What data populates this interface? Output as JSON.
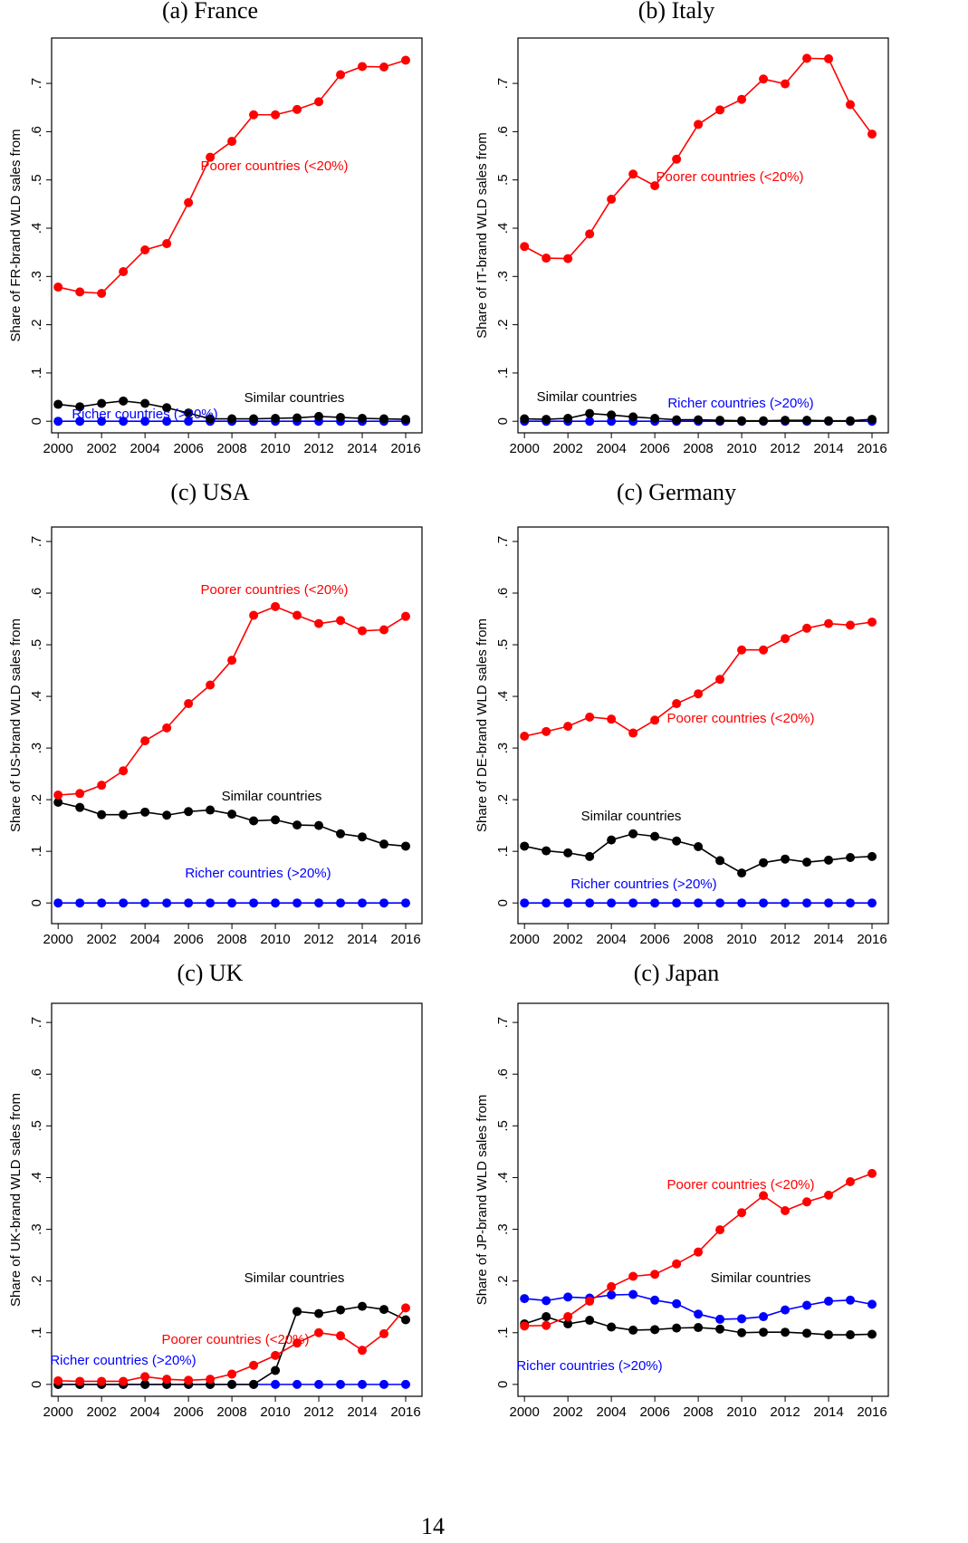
{
  "chart_data": [
    {
      "type": "line",
      "title": "(a) France",
      "ylabel": "Share of FR-brand WLD sales from",
      "x": [
        2000,
        2001,
        2002,
        2003,
        2004,
        2005,
        2006,
        2007,
        2008,
        2009,
        2010,
        2011,
        2012,
        2013,
        2014,
        2015,
        2016
      ],
      "xlim": [
        1999.7,
        2016.75
      ],
      "xticks": [
        2000,
        2002,
        2004,
        2006,
        2008,
        2010,
        2012,
        2014,
        2016
      ],
      "ylim": [
        -0.024,
        0.794
      ],
      "yticks": [
        0,
        {
          "value": 0.1,
          "label": ".1"
        },
        {
          "value": 0.2,
          "label": ".2"
        },
        {
          "value": 0.3,
          "label": ".3"
        },
        {
          "value": 0.4,
          "label": ".4"
        },
        {
          "value": 0.5,
          "label": ".5"
        },
        {
          "value": 0.6,
          "label": ".6"
        },
        {
          "value": 0.7,
          "label": ".7"
        }
      ],
      "series": [
        {
          "name": "Poorer countries (<20%)",
          "color": "#ff0000",
          "values": [
            0.278,
            0.268,
            0.265,
            0.31,
            0.355,
            0.368,
            0.453,
            0.547,
            0.58,
            0.635,
            0.635,
            0.646,
            0.662,
            0.718,
            0.735,
            0.734,
            0.748
          ]
        },
        {
          "name": "Similar countries",
          "color": "#000000",
          "values": [
            0.035,
            0.03,
            0.037,
            0.042,
            0.037,
            0.028,
            0.017,
            0.005,
            0.005,
            0.005,
            0.006,
            0.007,
            0.01,
            0.008,
            0.006,
            0.005,
            0.004
          ]
        },
        {
          "name": "Richer countries (>20%)",
          "color": "#0000ff",
          "values": [
            0,
            0,
            0,
            0,
            0,
            0,
            0,
            0,
            0,
            0,
            0,
            0,
            0,
            0,
            0,
            0,
            0
          ]
        }
      ]
    },
    {
      "type": "line",
      "title": "(b) Italy",
      "ylabel": "Share of IT-brand WLD sales from",
      "x": [
        2000,
        2001,
        2002,
        2003,
        2004,
        2005,
        2006,
        2007,
        2008,
        2009,
        2010,
        2011,
        2012,
        2013,
        2014,
        2015,
        2016
      ],
      "xlim": [
        1999.7,
        2016.75
      ],
      "xticks": [
        2000,
        2002,
        2004,
        2006,
        2008,
        2010,
        2012,
        2014,
        2016
      ],
      "ylim": [
        -0.024,
        0.794
      ],
      "yticks": [
        0,
        {
          "value": 0.1,
          "label": ".1"
        },
        {
          "value": 0.2,
          "label": ".2"
        },
        {
          "value": 0.3,
          "label": ".3"
        },
        {
          "value": 0.4,
          "label": ".4"
        },
        {
          "value": 0.5,
          "label": ".5"
        },
        {
          "value": 0.6,
          "label": ".6"
        },
        {
          "value": 0.7,
          "label": ".7"
        }
      ],
      "series": [
        {
          "name": "Poorer countries (<20%)",
          "color": "#ff0000",
          "values": [
            0.362,
            0.338,
            0.337,
            0.388,
            0.46,
            0.512,
            0.488,
            0.543,
            0.615,
            0.645,
            0.667,
            0.709,
            0.699,
            0.752,
            0.751,
            0.656,
            0.595
          ]
        },
        {
          "name": "Similar countries",
          "color": "#000000",
          "values": [
            0.005,
            0.004,
            0.006,
            0.016,
            0.013,
            0.009,
            0.006,
            0.003,
            0.003,
            0.002,
            0.001,
            0.001,
            0.002,
            0.002,
            0.001,
            0.001,
            0.004
          ]
        },
        {
          "name": "Richer countries (>20%)",
          "color": "#0000ff",
          "values": [
            0,
            0,
            0,
            0,
            0,
            0,
            0,
            0,
            0,
            0,
            0,
            0,
            0,
            0,
            0,
            0,
            0
          ]
        }
      ]
    },
    {
      "type": "line",
      "title": "(c) USA",
      "ylabel": "Share of US-brand WLD sales from",
      "x": [
        2000,
        2001,
        2002,
        2003,
        2004,
        2005,
        2006,
        2007,
        2008,
        2009,
        2010,
        2011,
        2012,
        2013,
        2014,
        2015,
        2016
      ],
      "xlim": [
        1999.7,
        2016.75
      ],
      "xticks": [
        2000,
        2002,
        2004,
        2006,
        2008,
        2010,
        2012,
        2014,
        2016
      ],
      "ylim": [
        -0.04,
        0.728
      ],
      "yticks": [
        0,
        {
          "value": 0.1,
          "label": ".1"
        },
        {
          "value": 0.2,
          "label": ".2"
        },
        {
          "value": 0.3,
          "label": ".3"
        },
        {
          "value": 0.4,
          "label": ".4"
        },
        {
          "value": 0.5,
          "label": ".5"
        },
        {
          "value": 0.6,
          "label": ".6"
        },
        {
          "value": 0.7,
          "label": ".7"
        }
      ],
      "series": [
        {
          "name": "Poorer countries (<20%)",
          "color": "#ff0000",
          "values": [
            0.209,
            0.212,
            0.228,
            0.256,
            0.314,
            0.339,
            0.386,
            0.422,
            0.47,
            0.557,
            0.574,
            0.557,
            0.541,
            0.547,
            0.527,
            0.529,
            0.555
          ]
        },
        {
          "name": "Similar countries",
          "color": "#000000",
          "values": [
            0.195,
            0.185,
            0.171,
            0.171,
            0.176,
            0.17,
            0.177,
            0.18,
            0.172,
            0.159,
            0.161,
            0.151,
            0.15,
            0.134,
            0.128,
            0.114,
            0.11
          ]
        },
        {
          "name": "Richer countries (>20%)",
          "color": "#0000ff",
          "values": [
            0,
            0,
            0,
            0,
            0,
            0,
            0,
            0,
            0,
            0,
            0,
            0,
            0,
            0,
            0,
            0,
            0
          ]
        }
      ]
    },
    {
      "type": "line",
      "title": "(c) Germany",
      "ylabel": "Share of DE-brand WLD sales from",
      "x": [
        2000,
        2001,
        2002,
        2003,
        2004,
        2005,
        2006,
        2007,
        2008,
        2009,
        2010,
        2011,
        2012,
        2013,
        2014,
        2015,
        2016
      ],
      "xlim": [
        1999.7,
        2016.75
      ],
      "xticks": [
        2000,
        2002,
        2004,
        2006,
        2008,
        2010,
        2012,
        2014,
        2016
      ],
      "ylim": [
        -0.04,
        0.728
      ],
      "yticks": [
        0,
        {
          "value": 0.1,
          "label": ".1"
        },
        {
          "value": 0.2,
          "label": ".2"
        },
        {
          "value": 0.3,
          "label": ".3"
        },
        {
          "value": 0.4,
          "label": ".4"
        },
        {
          "value": 0.5,
          "label": ".5"
        },
        {
          "value": 0.6,
          "label": ".6"
        },
        {
          "value": 0.7,
          "label": ".7"
        }
      ],
      "series": [
        {
          "name": "Poorer countries (<20%)",
          "color": "#ff0000",
          "values": [
            0.323,
            0.332,
            0.342,
            0.36,
            0.356,
            0.329,
            0.354,
            0.386,
            0.405,
            0.433,
            0.49,
            0.49,
            0.512,
            0.532,
            0.541,
            0.538,
            0.544
          ]
        },
        {
          "name": "Similar countries",
          "color": "#000000",
          "values": [
            0.11,
            0.101,
            0.097,
            0.09,
            0.122,
            0.134,
            0.129,
            0.12,
            0.109,
            0.082,
            0.058,
            0.078,
            0.085,
            0.079,
            0.083,
            0.088,
            0.09
          ]
        },
        {
          "name": "Richer countries (>20%)",
          "color": "#0000ff",
          "values": [
            0,
            0,
            0,
            0,
            0,
            0,
            0,
            0,
            0,
            0,
            0,
            0,
            0,
            0,
            0,
            0,
            0
          ]
        }
      ]
    },
    {
      "type": "line",
      "title": "(c) UK",
      "ylabel": "Share of UK-brand WLD sales from",
      "x": [
        2000,
        2001,
        2002,
        2003,
        2004,
        2005,
        2006,
        2007,
        2008,
        2009,
        2010,
        2011,
        2012,
        2013,
        2014,
        2015,
        2016
      ],
      "xlim": [
        1999.7,
        2016.75
      ],
      "xticks": [
        2000,
        2002,
        2004,
        2006,
        2008,
        2010,
        2012,
        2014,
        2016
      ],
      "ylim": [
        -0.023,
        0.737
      ],
      "yticks": [
        0,
        {
          "value": 0.1,
          "label": ".1"
        },
        {
          "value": 0.2,
          "label": ".2"
        },
        {
          "value": 0.3,
          "label": ".3"
        },
        {
          "value": 0.4,
          "label": ".4"
        },
        {
          "value": 0.5,
          "label": ".5"
        },
        {
          "value": 0.6,
          "label": ".6"
        },
        {
          "value": 0.7,
          "label": ".7"
        }
      ],
      "series": [
        {
          "name": "Poorer countries (<20%)",
          "color": "#ff0000",
          "values": [
            0.007,
            0.006,
            0.006,
            0.006,
            0.015,
            0.01,
            0.008,
            0.01,
            0.02,
            0.037,
            0.056,
            0.08,
            0.1,
            0.094,
            0.066,
            0.098,
            0.148
          ]
        },
        {
          "name": "Similar countries",
          "color": "#000000",
          "values": [
            0,
            0,
            0,
            0,
            0,
            0,
            0,
            0,
            0,
            0,
            0.027,
            0.141,
            0.137,
            0.144,
            0.151,
            0.145,
            0.125
          ]
        },
        {
          "name": "Richer countries (>20%)",
          "color": "#0000ff",
          "values": [
            0,
            0,
            0,
            0,
            0,
            0,
            0,
            0,
            0,
            0,
            0,
            0,
            0,
            0,
            0,
            0,
            0
          ]
        }
      ]
    },
    {
      "type": "line",
      "title": "(c) Japan",
      "ylabel": "Share of JP-brand WLD sales from",
      "x": [
        2000,
        2001,
        2002,
        2003,
        2004,
        2005,
        2006,
        2007,
        2008,
        2009,
        2010,
        2011,
        2012,
        2013,
        2014,
        2015,
        2016
      ],
      "xlim": [
        1999.7,
        2016.75
      ],
      "xticks": [
        2000,
        2002,
        2004,
        2006,
        2008,
        2010,
        2012,
        2014,
        2016
      ],
      "ylim": [
        -0.023,
        0.737
      ],
      "yticks": [
        0,
        {
          "value": 0.1,
          "label": ".1"
        },
        {
          "value": 0.2,
          "label": ".2"
        },
        {
          "value": 0.3,
          "label": ".3"
        },
        {
          "value": 0.4,
          "label": ".4"
        },
        {
          "value": 0.5,
          "label": ".5"
        },
        {
          "value": 0.6,
          "label": ".6"
        },
        {
          "value": 0.7,
          "label": ".7"
        }
      ],
      "series": [
        {
          "name": "Poorer countries (<20%)",
          "color": "#ff0000",
          "values": [
            0.113,
            0.114,
            0.131,
            0.161,
            0.189,
            0.209,
            0.213,
            0.233,
            0.256,
            0.299,
            0.332,
            0.365,
            0.336,
            0.353,
            0.366,
            0.392,
            0.408
          ]
        },
        {
          "name": "Similar countries",
          "color": "#000000",
          "values": [
            0.117,
            0.131,
            0.117,
            0.124,
            0.111,
            0.105,
            0.106,
            0.109,
            0.11,
            0.107,
            0.1,
            0.101,
            0.101,
            0.099,
            0.096,
            0.096,
            0.097
          ]
        },
        {
          "name": "Richer countries (>20%)",
          "color": "#0000ff",
          "values": [
            0.166,
            0.162,
            0.169,
            0.167,
            0.173,
            0.174,
            0.163,
            0.156,
            0.136,
            0.126,
            0.127,
            0.131,
            0.144,
            0.153,
            0.161,
            0.163,
            0.155
          ]
        }
      ]
    }
  ],
  "page_number": "14"
}
